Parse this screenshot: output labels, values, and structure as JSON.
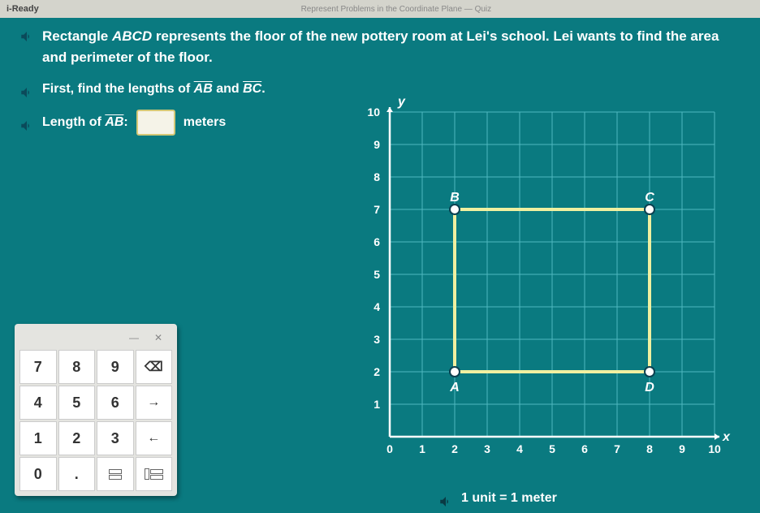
{
  "titlebar": {
    "left": "i-Ready",
    "center": "Represent Problems in the Coordinate Plane — Quiz"
  },
  "problem": {
    "intro_prefix": "Rectangle ",
    "intro_rect": "ABCD",
    "intro_rest": " represents the floor of the new pottery room at Lei's school. Lei wants to find the area and perimeter of the floor."
  },
  "instruction": {
    "prefix": "First, find the lengths of ",
    "seg1": "AB",
    "mid": " and ",
    "seg2": "BC",
    "suffix": "."
  },
  "prompt": {
    "prefix": "Length of ",
    "seg": "AB",
    "colon": ":",
    "value": "",
    "units": "meters"
  },
  "legend": {
    "text": "1 unit = 1 meter"
  },
  "graph": {
    "xmin": 0,
    "xmax": 10,
    "ymin": 0,
    "ymax": 10,
    "xlabel": "x",
    "ylabel": "y",
    "ticks": [
      0,
      1,
      2,
      3,
      4,
      5,
      6,
      7,
      8,
      9,
      10
    ],
    "grid_color": "#4fb8bf",
    "axis_color": "#ffffff",
    "background": "#0a7a80",
    "rect_color": "#f0f0a0",
    "rect_width": 4,
    "point_fill": "#ffffff",
    "point_stroke": "#0a4050",
    "tick_fontsize": 14,
    "label_fontsize": 16,
    "points": {
      "A": {
        "x": 2,
        "y": 2
      },
      "B": {
        "x": 2,
        "y": 7
      },
      "C": {
        "x": 8,
        "y": 7
      },
      "D": {
        "x": 8,
        "y": 2
      }
    }
  },
  "calculator": {
    "minimize": "—",
    "close": "✕",
    "keys": [
      {
        "label": "7"
      },
      {
        "label": "8"
      },
      {
        "label": "9"
      },
      {
        "label": "⌫",
        "op": true
      },
      {
        "label": "4"
      },
      {
        "label": "5"
      },
      {
        "label": "6"
      },
      {
        "label": "→",
        "op": true
      },
      {
        "label": "1"
      },
      {
        "label": "2"
      },
      {
        "label": "3"
      },
      {
        "label": "←",
        "op": true
      },
      {
        "label": "0"
      },
      {
        "label": "."
      },
      {
        "label": "",
        "icon": "frac"
      },
      {
        "label": "",
        "icon": "mfrac"
      }
    ]
  }
}
